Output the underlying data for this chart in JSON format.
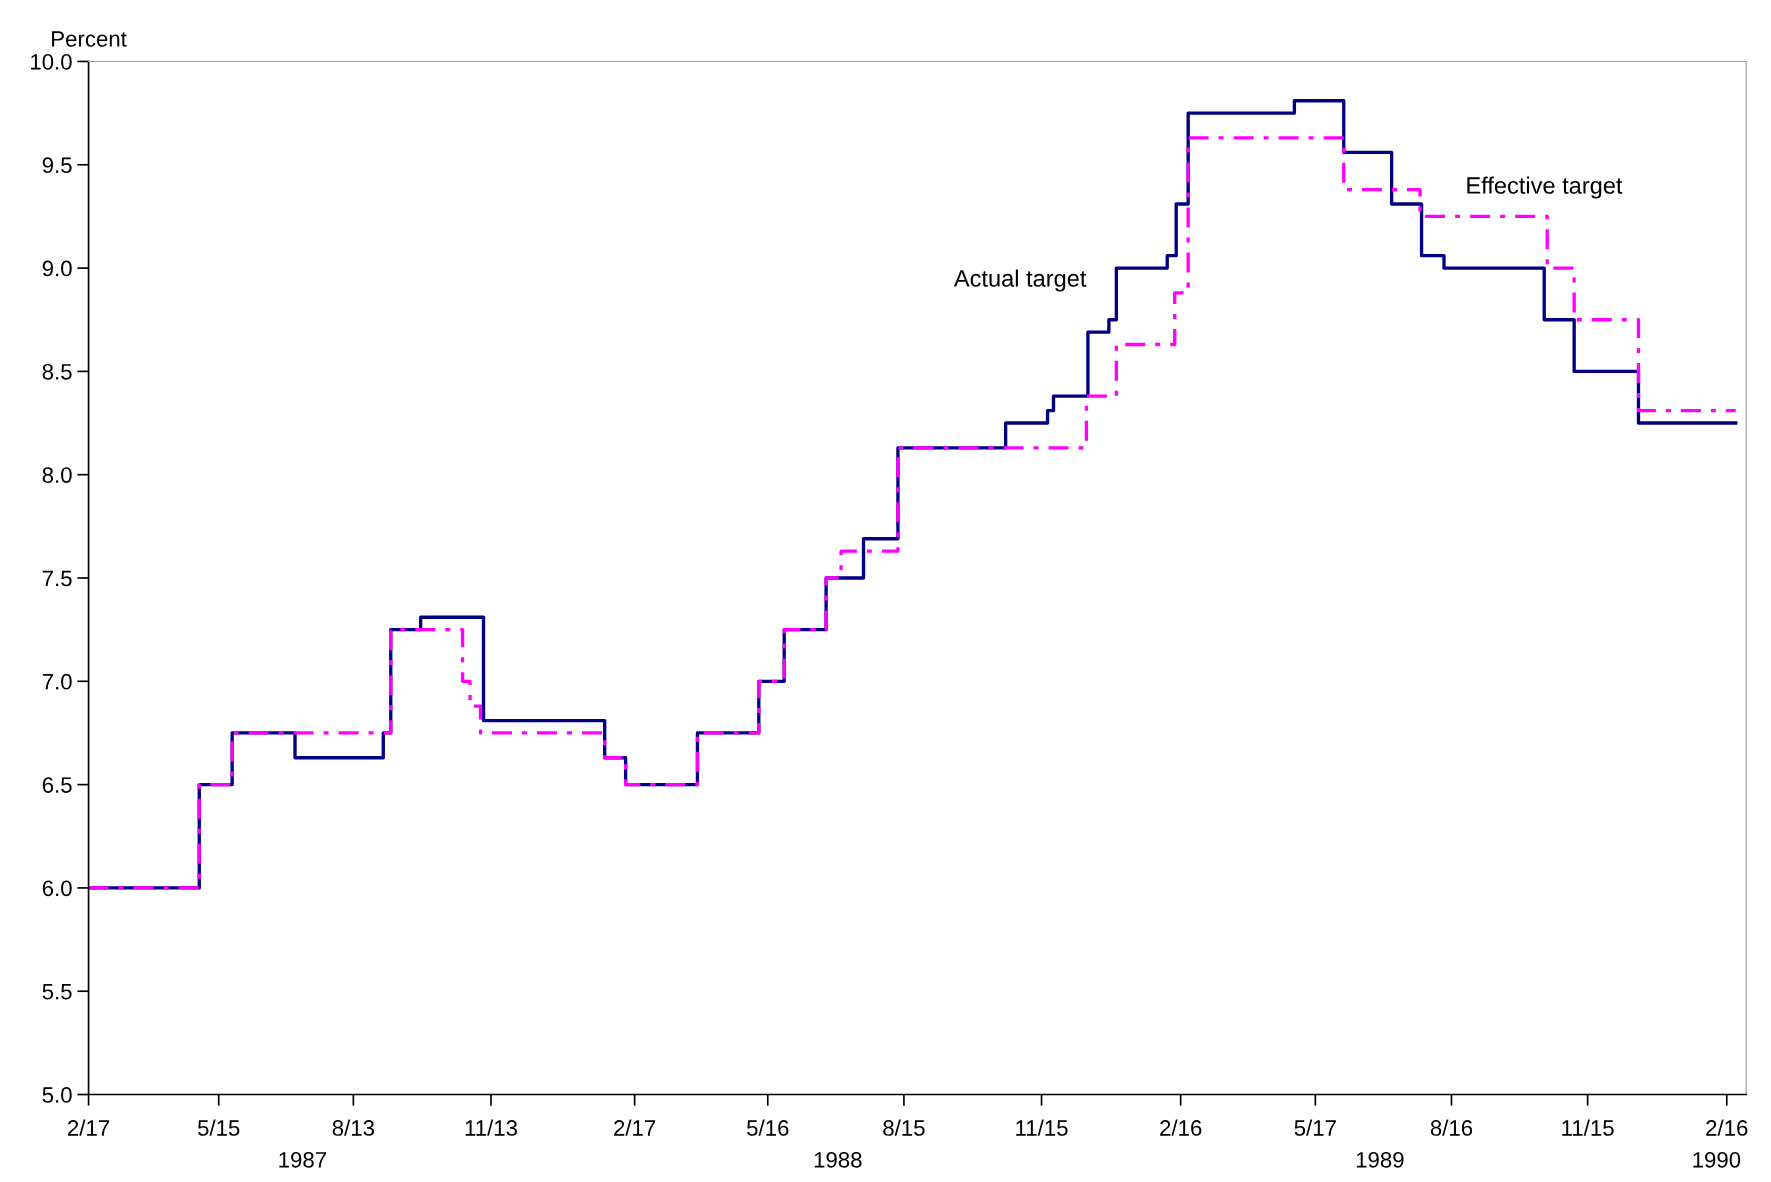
{
  "chart_data": {
    "type": "step",
    "ylabel": "Percent",
    "series": [
      {
        "name": "Actual target",
        "color": "#000080",
        "line_style": "solid",
        "x": [
          "1987-02-17",
          "1987-05-02",
          "1987-05-24",
          "1987-07-05",
          "1987-09-02",
          "1987-09-07",
          "1987-09-27",
          "1987-11-08",
          "1988-01-28",
          "1988-02-11",
          "1988-03-30",
          "1988-05-10",
          "1988-05-27",
          "1988-06-24",
          "1988-07-19",
          "1988-08-11",
          "1988-10-22",
          "1988-11-19",
          "1988-11-23",
          "1988-12-16",
          "1988-12-30",
          "1989-01-04",
          "1989-02-07",
          "1989-02-13",
          "1989-02-21",
          "1989-05-03",
          "1989-06-05",
          "1989-07-07",
          "1989-07-27",
          "1989-08-11",
          "1989-10-17",
          "1989-11-06",
          "1989-12-19",
          "1990-02-22"
        ],
        "values": [
          6.0,
          6.5,
          6.75,
          6.63,
          6.75,
          7.25,
          7.31,
          6.81,
          6.63,
          6.5,
          6.75,
          7.0,
          7.25,
          7.5,
          7.69,
          8.13,
          8.25,
          8.31,
          8.38,
          8.69,
          8.75,
          9.0,
          9.06,
          9.31,
          9.75,
          9.81,
          9.56,
          9.31,
          9.06,
          9.0,
          8.75,
          8.5,
          8.25,
          8.25
        ]
      },
      {
        "name": "Effective target",
        "color": "#ff00ff",
        "line_style": "dashdot",
        "x": [
          "1987-02-17",
          "1987-05-02",
          "1987-05-24",
          "1987-09-07",
          "1987-10-25",
          "1987-10-30",
          "1987-11-06",
          "1988-01-28",
          "1988-02-11",
          "1988-03-30",
          "1988-05-10",
          "1988-05-27",
          "1988-06-24",
          "1988-07-04",
          "1988-08-11",
          "1988-12-15",
          "1989-01-04",
          "1989-02-12",
          "1989-02-21",
          "1989-06-05",
          "1989-07-26",
          "1989-10-19",
          "1989-11-06",
          "1989-12-19",
          "1990-02-22"
        ],
        "values": [
          6.0,
          6.5,
          6.75,
          7.25,
          7.0,
          6.88,
          6.75,
          6.63,
          6.5,
          6.75,
          7.0,
          7.25,
          7.5,
          7.63,
          8.13,
          8.38,
          8.63,
          8.88,
          9.63,
          9.38,
          9.25,
          9.0,
          8.75,
          8.31,
          8.31
        ]
      }
    ],
    "xlim": [
      "1987-02-17",
      "1990-03-01"
    ],
    "xticks": [
      {
        "value": "1987-02-17",
        "label": "2/17"
      },
      {
        "value": "1987-05-15",
        "label": "5/15"
      },
      {
        "value": "1987-08-13",
        "label": "8/13"
      },
      {
        "value": "1987-11-13",
        "label": "11/13"
      },
      {
        "value": "1988-02-17",
        "label": "2/17"
      },
      {
        "value": "1988-05-16",
        "label": "5/16"
      },
      {
        "value": "1988-08-15",
        "label": "8/15"
      },
      {
        "value": "1988-11-15",
        "label": "11/15"
      },
      {
        "value": "1989-02-16",
        "label": "2/16"
      },
      {
        "value": "1989-05-17",
        "label": "5/17"
      },
      {
        "value": "1989-08-16",
        "label": "8/16"
      },
      {
        "value": "1989-11-15",
        "label": "11/15"
      },
      {
        "value": "1990-02-16",
        "label": "2/16"
      }
    ],
    "ylim": [
      5.0,
      10.0
    ],
    "yticks": [
      {
        "value": 5.0,
        "label": "5.0"
      },
      {
        "value": 5.5,
        "label": "5.5"
      },
      {
        "value": 6.0,
        "label": "6.0"
      },
      {
        "value": 6.5,
        "label": "6.5"
      },
      {
        "value": 7.0,
        "label": "7.0"
      },
      {
        "value": 7.5,
        "label": "7.5"
      },
      {
        "value": 8.0,
        "label": "8.0"
      },
      {
        "value": 8.5,
        "label": "8.5"
      },
      {
        "value": 9.0,
        "label": "9.0"
      },
      {
        "value": 9.5,
        "label": "9.5"
      },
      {
        "value": 10.0,
        "label": "10.0"
      }
    ],
    "annotations": [
      "1987",
      "1988",
      "1989",
      "1990"
    ],
    "grid": false
  }
}
